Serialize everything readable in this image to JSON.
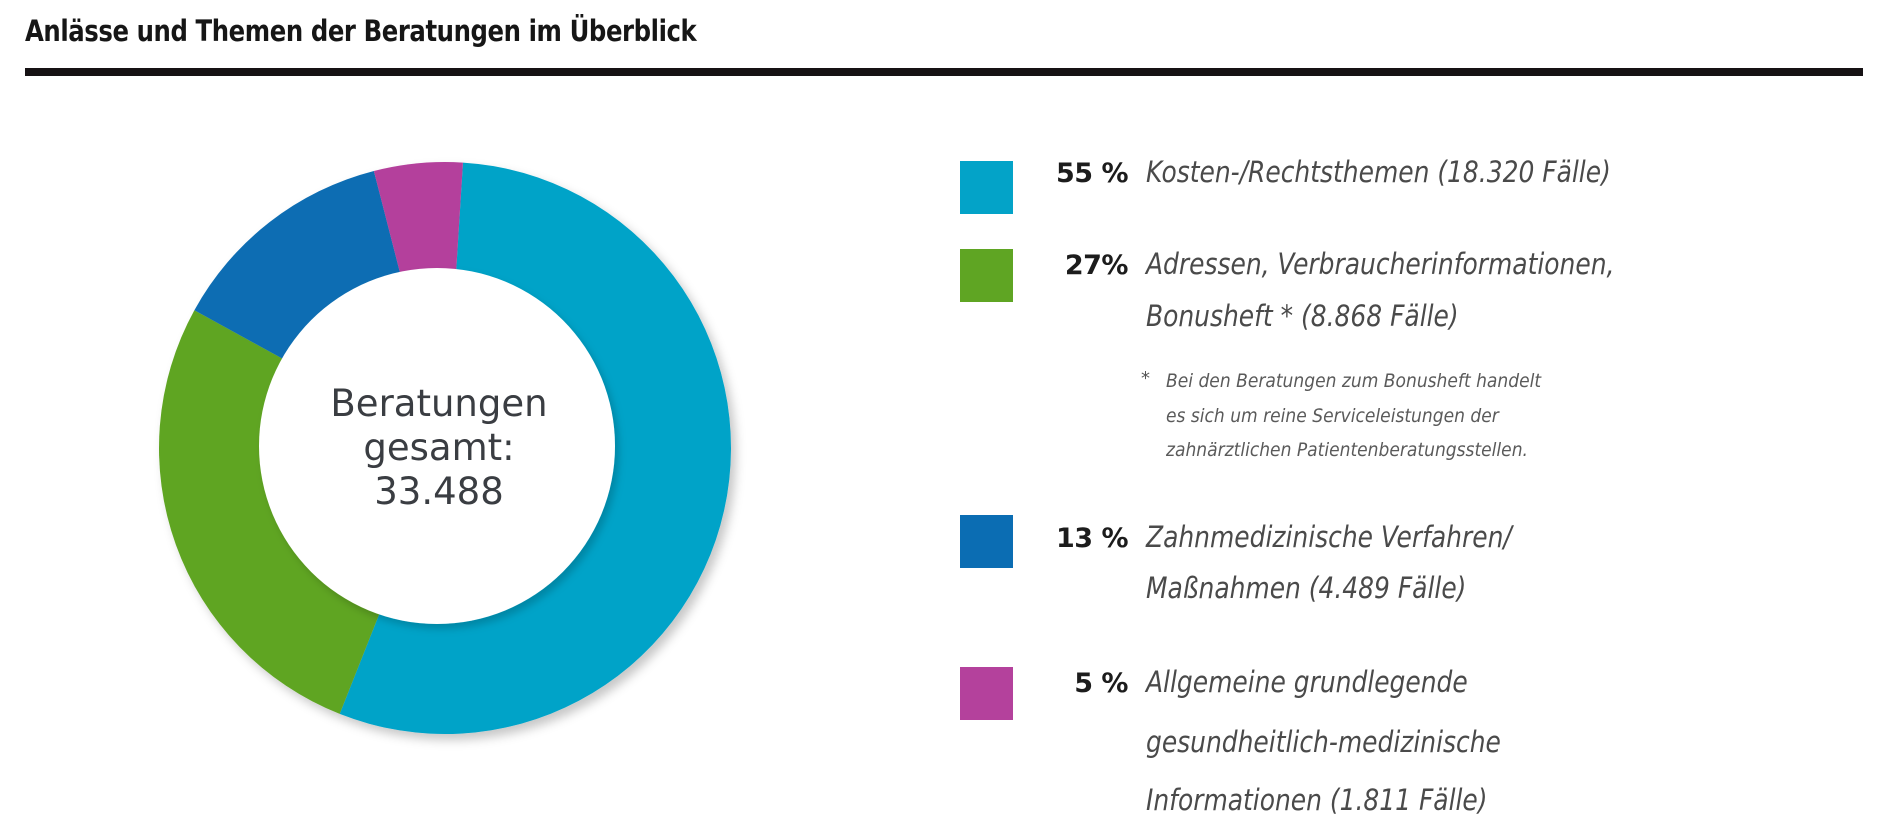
{
  "title": "Anlässe und Themen der Beratungen im Überblick",
  "chart_data": {
    "type": "pie",
    "variant": "donut",
    "title": "Anlässe und Themen der Beratungen im Überblick",
    "center_label": [
      "Beratungen",
      "gesamt:",
      "33.488"
    ],
    "total": 33488,
    "legend_position": "right",
    "series": [
      {
        "name": "Kosten-/Rechtsthemen",
        "percent": 55,
        "cases": 18320,
        "color": "#03a3c8",
        "pct_label": "55 %",
        "label_lines": [
          "Kosten-/Rechtsthemen (18.320 Fälle)"
        ]
      },
      {
        "name": "Adressen, Verbraucherinformationen, Bonusheft *",
        "percent": 27,
        "cases": 8868,
        "color": "#5fa523",
        "pct_label": "27%",
        "label_lines": [
          "Adressen, Verbraucherinformationen,",
          "Bonusheft * (8.868 Fälle)"
        ]
      },
      {
        "name": "Zahnmedizinische Verfahren/Maßnahmen",
        "percent": 13,
        "cases": 4489,
        "color": "#0b6db3",
        "pct_label": "13 %",
        "label_lines": [
          "Zahnmedizinische Verfahren/",
          "Maßnahmen (4.489 Fälle)"
        ]
      },
      {
        "name": "Allgemeine grundlegende gesundheitlich-medizinische Informationen",
        "percent": 5,
        "cases": 1811,
        "color": "#b4419c",
        "pct_label": "5 %",
        "label_lines": [
          "Allgemeine grundlegende",
          "gesundheitlich-medizinische",
          "Informationen (1.811 Fälle)"
        ]
      }
    ],
    "footnote": {
      "marker": "*",
      "lines": [
        "Bei den Beratungen zum Bonusheft handelt",
        "es sich um reine Serviceleistungen der",
        "zahnärztlichen Patientenberatungsstellen."
      ]
    }
  }
}
